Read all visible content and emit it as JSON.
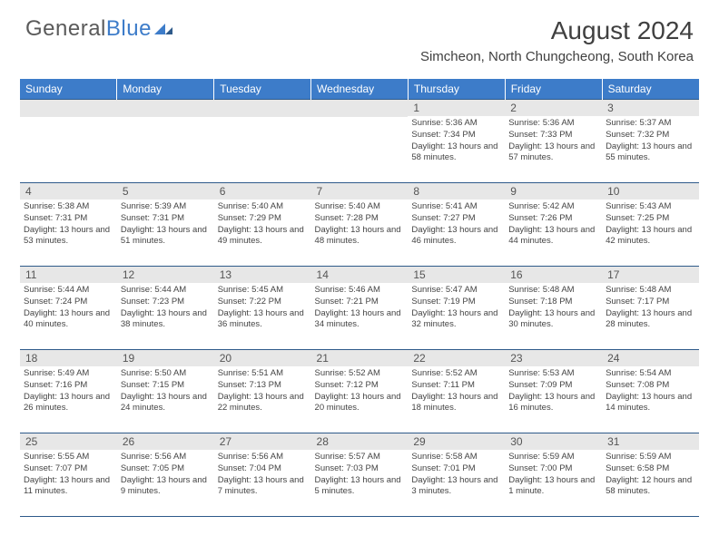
{
  "logo": {
    "text1": "General",
    "text2": "Blue"
  },
  "title": "August 2024",
  "location": "Simcheon, North Chungcheong, South Korea",
  "colors": {
    "header_bg": "#3d7cc9",
    "header_text": "#ffffff",
    "day_number_bg": "#e7e7e7",
    "border": "#2e5a8a",
    "logo_gray": "#5a5a5a",
    "logo_blue": "#3d7cc9"
  },
  "weekdays": [
    "Sunday",
    "Monday",
    "Tuesday",
    "Wednesday",
    "Thursday",
    "Friday",
    "Saturday"
  ],
  "weeks": [
    [
      null,
      null,
      null,
      null,
      {
        "n": "1",
        "sunrise": "Sunrise: 5:36 AM",
        "sunset": "Sunset: 7:34 PM",
        "daylight": "Daylight: 13 hours and 58 minutes."
      },
      {
        "n": "2",
        "sunrise": "Sunrise: 5:36 AM",
        "sunset": "Sunset: 7:33 PM",
        "daylight": "Daylight: 13 hours and 57 minutes."
      },
      {
        "n": "3",
        "sunrise": "Sunrise: 5:37 AM",
        "sunset": "Sunset: 7:32 PM",
        "daylight": "Daylight: 13 hours and 55 minutes."
      }
    ],
    [
      {
        "n": "4",
        "sunrise": "Sunrise: 5:38 AM",
        "sunset": "Sunset: 7:31 PM",
        "daylight": "Daylight: 13 hours and 53 minutes."
      },
      {
        "n": "5",
        "sunrise": "Sunrise: 5:39 AM",
        "sunset": "Sunset: 7:31 PM",
        "daylight": "Daylight: 13 hours and 51 minutes."
      },
      {
        "n": "6",
        "sunrise": "Sunrise: 5:40 AM",
        "sunset": "Sunset: 7:29 PM",
        "daylight": "Daylight: 13 hours and 49 minutes."
      },
      {
        "n": "7",
        "sunrise": "Sunrise: 5:40 AM",
        "sunset": "Sunset: 7:28 PM",
        "daylight": "Daylight: 13 hours and 48 minutes."
      },
      {
        "n": "8",
        "sunrise": "Sunrise: 5:41 AM",
        "sunset": "Sunset: 7:27 PM",
        "daylight": "Daylight: 13 hours and 46 minutes."
      },
      {
        "n": "9",
        "sunrise": "Sunrise: 5:42 AM",
        "sunset": "Sunset: 7:26 PM",
        "daylight": "Daylight: 13 hours and 44 minutes."
      },
      {
        "n": "10",
        "sunrise": "Sunrise: 5:43 AM",
        "sunset": "Sunset: 7:25 PM",
        "daylight": "Daylight: 13 hours and 42 minutes."
      }
    ],
    [
      {
        "n": "11",
        "sunrise": "Sunrise: 5:44 AM",
        "sunset": "Sunset: 7:24 PM",
        "daylight": "Daylight: 13 hours and 40 minutes."
      },
      {
        "n": "12",
        "sunrise": "Sunrise: 5:44 AM",
        "sunset": "Sunset: 7:23 PM",
        "daylight": "Daylight: 13 hours and 38 minutes."
      },
      {
        "n": "13",
        "sunrise": "Sunrise: 5:45 AM",
        "sunset": "Sunset: 7:22 PM",
        "daylight": "Daylight: 13 hours and 36 minutes."
      },
      {
        "n": "14",
        "sunrise": "Sunrise: 5:46 AM",
        "sunset": "Sunset: 7:21 PM",
        "daylight": "Daylight: 13 hours and 34 minutes."
      },
      {
        "n": "15",
        "sunrise": "Sunrise: 5:47 AM",
        "sunset": "Sunset: 7:19 PM",
        "daylight": "Daylight: 13 hours and 32 minutes."
      },
      {
        "n": "16",
        "sunrise": "Sunrise: 5:48 AM",
        "sunset": "Sunset: 7:18 PM",
        "daylight": "Daylight: 13 hours and 30 minutes."
      },
      {
        "n": "17",
        "sunrise": "Sunrise: 5:48 AM",
        "sunset": "Sunset: 7:17 PM",
        "daylight": "Daylight: 13 hours and 28 minutes."
      }
    ],
    [
      {
        "n": "18",
        "sunrise": "Sunrise: 5:49 AM",
        "sunset": "Sunset: 7:16 PM",
        "daylight": "Daylight: 13 hours and 26 minutes."
      },
      {
        "n": "19",
        "sunrise": "Sunrise: 5:50 AM",
        "sunset": "Sunset: 7:15 PM",
        "daylight": "Daylight: 13 hours and 24 minutes."
      },
      {
        "n": "20",
        "sunrise": "Sunrise: 5:51 AM",
        "sunset": "Sunset: 7:13 PM",
        "daylight": "Daylight: 13 hours and 22 minutes."
      },
      {
        "n": "21",
        "sunrise": "Sunrise: 5:52 AM",
        "sunset": "Sunset: 7:12 PM",
        "daylight": "Daylight: 13 hours and 20 minutes."
      },
      {
        "n": "22",
        "sunrise": "Sunrise: 5:52 AM",
        "sunset": "Sunset: 7:11 PM",
        "daylight": "Daylight: 13 hours and 18 minutes."
      },
      {
        "n": "23",
        "sunrise": "Sunrise: 5:53 AM",
        "sunset": "Sunset: 7:09 PM",
        "daylight": "Daylight: 13 hours and 16 minutes."
      },
      {
        "n": "24",
        "sunrise": "Sunrise: 5:54 AM",
        "sunset": "Sunset: 7:08 PM",
        "daylight": "Daylight: 13 hours and 14 minutes."
      }
    ],
    [
      {
        "n": "25",
        "sunrise": "Sunrise: 5:55 AM",
        "sunset": "Sunset: 7:07 PM",
        "daylight": "Daylight: 13 hours and 11 minutes."
      },
      {
        "n": "26",
        "sunrise": "Sunrise: 5:56 AM",
        "sunset": "Sunset: 7:05 PM",
        "daylight": "Daylight: 13 hours and 9 minutes."
      },
      {
        "n": "27",
        "sunrise": "Sunrise: 5:56 AM",
        "sunset": "Sunset: 7:04 PM",
        "daylight": "Daylight: 13 hours and 7 minutes."
      },
      {
        "n": "28",
        "sunrise": "Sunrise: 5:57 AM",
        "sunset": "Sunset: 7:03 PM",
        "daylight": "Daylight: 13 hours and 5 minutes."
      },
      {
        "n": "29",
        "sunrise": "Sunrise: 5:58 AM",
        "sunset": "Sunset: 7:01 PM",
        "daylight": "Daylight: 13 hours and 3 minutes."
      },
      {
        "n": "30",
        "sunrise": "Sunrise: 5:59 AM",
        "sunset": "Sunset: 7:00 PM",
        "daylight": "Daylight: 13 hours and 1 minute."
      },
      {
        "n": "31",
        "sunrise": "Sunrise: 5:59 AM",
        "sunset": "Sunset: 6:58 PM",
        "daylight": "Daylight: 12 hours and 58 minutes."
      }
    ]
  ]
}
